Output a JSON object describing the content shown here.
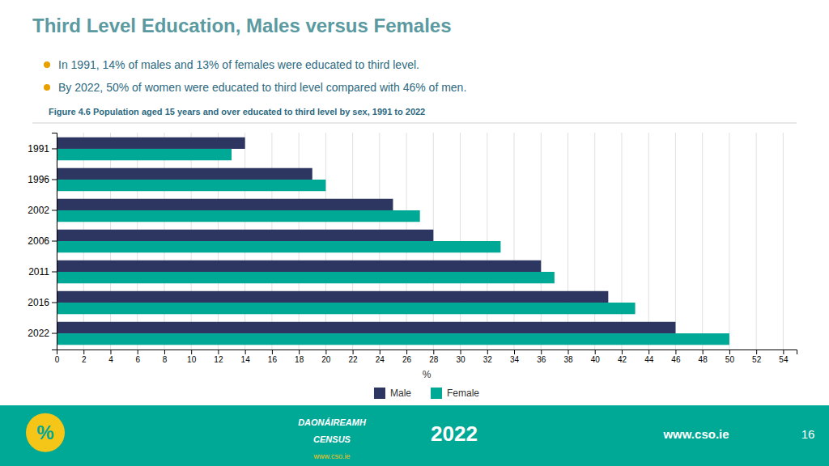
{
  "chart_data": {
    "type": "bar",
    "orientation": "horizontal",
    "title": "Third Level Education, Males versus Females",
    "annotations": [
      "In 1991, 14% of males and 13% of females were educated to third level.",
      "By 2022, 50% of women were educated to third level compared with 46% of men.",
      "Figure 4.6 Population aged 15 years and over educated to third level by sex, 1991 to 2022",
      "%",
      "DAONÁIREAMH",
      "CENSUS",
      "2022",
      "www.cso.ie",
      "www.cso.ie",
      "16"
    ],
    "categories": [
      "1991",
      "1996",
      "2002",
      "2006",
      "2011",
      "2016",
      "2022"
    ],
    "series": [
      {
        "name": "Male",
        "color": "#2d3561",
        "values": [
          14,
          19,
          25,
          28,
          36,
          41,
          46
        ]
      },
      {
        "name": "Female",
        "color": "#00a896",
        "values": [
          13,
          20,
          27,
          33,
          37,
          43,
          50
        ]
      }
    ],
    "xlabel": "%",
    "xlim": [
      0,
      55
    ],
    "xticks": [
      0,
      2,
      4,
      6,
      8,
      10,
      12,
      14,
      16,
      18,
      20,
      22,
      24,
      26,
      28,
      30,
      32,
      34,
      36,
      38,
      40,
      42,
      44,
      46,
      48,
      50,
      52,
      54
    ],
    "grid": true,
    "legend": "bottom"
  }
}
